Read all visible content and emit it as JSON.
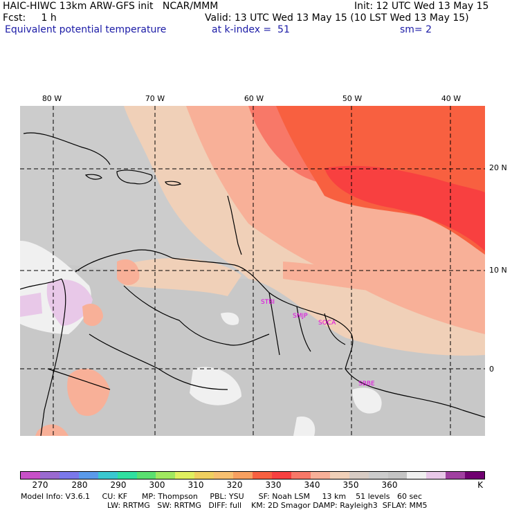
{
  "header": {
    "line1_left": "HAIC-HIWC 13km ARW-GFS init   NCAR/MMM",
    "line1_right": "Init: 12 UTC Wed 13 May 15",
    "line2_left": "Fcst:     1 h",
    "line2_right": "Valid: 13 UTC Wed 13 May 15 (10 LST Wed 13 May 15)",
    "line3_field": "Equivalent potential temperature",
    "line3_level": "at k-index =  51",
    "line3_smooth": "sm= 2"
  },
  "longitude_labels": [
    "80 W",
    "70 W",
    "60 W",
    "50 W",
    "40 W"
  ],
  "latitude_labels": [
    "20 N",
    "10 N",
    "0"
  ],
  "stations": [
    "STBI",
    "SMJP",
    "SOCA",
    "SBBE"
  ],
  "colorbar": {
    "colors": [
      "#c850c8",
      "#9a6ad0",
      "#7a78ea",
      "#5a9aea",
      "#3ac8d0",
      "#30e0a0",
      "#5ae070",
      "#a0e860",
      "#e0f060",
      "#f0d060",
      "#f8c070",
      "#f8a060",
      "#f86040",
      "#f84040",
      "#f87868",
      "#f8b098",
      "#f0d0b8",
      "#d8ccc4",
      "#cccccc",
      "#c4c4c4",
      "#f0f0f0",
      "#e8c8e8",
      "#a040a0",
      "#700070"
    ],
    "labels": [
      "270",
      "280",
      "290",
      "300",
      "310",
      "320",
      "330",
      "340",
      "350",
      "360"
    ],
    "unit": "K"
  },
  "model_info": {
    "line1": "Model Info: V3.6.1     CU: KF      MP: Thompson     PBL: YSU      SF: Noah LSM     13 km    51 levels   60 sec",
    "line2": "LW: RRTMG   SW: RRTMG   DIFF: full    KM: 2D Smagor DAMP: Rayleigh3  SFLAY: MM5"
  }
}
